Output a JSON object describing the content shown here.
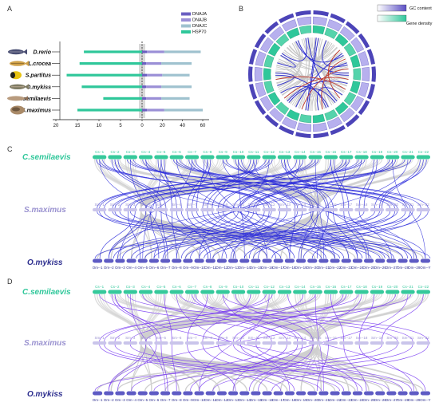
{
  "colors": {
    "dnaja": "#6a5fc1",
    "dnajb": "#9a8fd6",
    "dnajc": "#9fc2cf",
    "hsp70": "#2fc79a",
    "green_chr": "#35c99b",
    "purple_chr": "#a79ee0",
    "navy_chr": "#5e5bc4",
    "blue_link": "#2a2adb",
    "violet_link": "#7b3ff2",
    "gray_link": "#cfcfcf"
  },
  "panels": {
    "a": "A",
    "b": "B",
    "c": "C",
    "d": "D"
  },
  "chart_data": {
    "type": "bar",
    "panel": "A",
    "categories": [
      "D.rerio",
      "L.crocea",
      "S.partitus",
      "O.mykiss",
      "C.semilaevis",
      "S.maximus"
    ],
    "icons": [
      "zebrafish-icon",
      "croaker-icon",
      "damselfish-icon",
      "trout-icon",
      "tongue-sole-icon",
      "turbot-icon"
    ],
    "left_axis": {
      "ticks": [
        "20",
        "15",
        "10",
        "5",
        "0"
      ]
    },
    "right_axis": {
      "ticks": [
        "20",
        "40",
        "60"
      ]
    },
    "legend": [
      "DNAJA",
      "DNAJB",
      "DNAJC",
      "HSP70"
    ],
    "series": [
      {
        "name": "HSP70",
        "side": "left",
        "values": [
          13.5,
          14.5,
          17.5,
          14,
          9,
          15
        ]
      },
      {
        "name": "DNAJA",
        "side": "right",
        "values": [
          5,
          4,
          5,
          4,
          4,
          5
        ]
      },
      {
        "name": "DNAJB",
        "side": "right",
        "values": [
          17,
          15,
          15,
          15,
          15,
          17
        ]
      },
      {
        "name": "DNAJC",
        "side": "right",
        "values": [
          36,
          30,
          27,
          30,
          28,
          38
        ]
      }
    ]
  },
  "circos": {
    "gc_label": "GC content",
    "density_label": "Gene density"
  },
  "synteny": {
    "c": {
      "top": "C.semilaevis",
      "mid": "S.maximus",
      "bot": "O.mykiss"
    },
    "d": {
      "top": "C.semilaevis",
      "mid": "S.maximus",
      "bot": "O.mykiss"
    },
    "cs_chr": [
      "Cs--1",
      "Cs--2",
      "Cs--3",
      "Cs--4",
      "Cs--5",
      "Cs--6",
      "Cs--7",
      "Cs--8",
      "Cs--9",
      "Cs--10",
      "Cs--11",
      "Cs--12",
      "Cs--13",
      "Cs--14",
      "Cs--15",
      "Cs--16",
      "Cs--17",
      "Cs--18",
      "Cs--19",
      "Cs--20",
      "Cs--21",
      "Cs--22"
    ],
    "sm_chr": [
      "Sm--1",
      "Sm--2",
      "Sm--3",
      "Sm--4",
      "Sm--5",
      "Sm--6",
      "Sm--7",
      "Sm--8",
      "Sm--9",
      "Sm--10",
      "Sm--11",
      "Sm--12",
      "Sm--13",
      "Sm--14",
      "Sm--15",
      "Sm--16",
      "Sm--17",
      "Sm--18",
      "Sm--19",
      "Sm--20",
      "Sm--21",
      "Sm--22"
    ],
    "om_chr": [
      "Om--1",
      "Om--2",
      "Om--3",
      "Om--4",
      "Om--5",
      "Om--6",
      "Om--7",
      "Om--8",
      "Om--9",
      "Om--10",
      "Om--11",
      "Om--12",
      "Om--13",
      "Om--14",
      "Om--15",
      "Om--16",
      "Om--17",
      "Om--18",
      "Om--19",
      "Om--20",
      "Om--21",
      "Om--22",
      "Om--23",
      "Om--24",
      "Om--25",
      "Om--26",
      "Om--27",
      "Om--28",
      "Om--29",
      "Om--Y"
    ]
  }
}
